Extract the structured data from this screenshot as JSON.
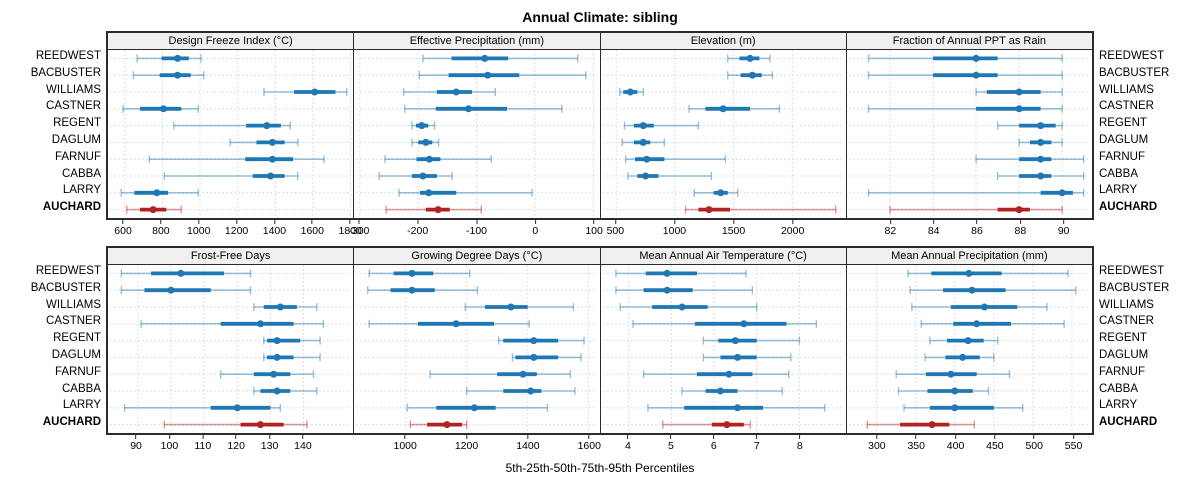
{
  "title": "Annual Climate: sibling",
  "xlabel": "5th-25th-50th-75th-95th Percentiles",
  "chart_data": {
    "type": "scatter",
    "subtype": "percentile-interval-trellis",
    "percentiles": [
      5,
      25,
      50,
      75,
      95
    ],
    "categories": [
      "REEDWEST",
      "BACBUSTER",
      "WILLIAMS",
      "CASTNER",
      "REGENT",
      "DAGLUM",
      "FARNUF",
      "CABBA",
      "LARRY",
      "AUCHARD"
    ],
    "highlight_category": "AUCHARD",
    "layout": {
      "rows": 2,
      "cols": 4,
      "grid": "dotted",
      "legend": "none",
      "row_labels": "both-sides"
    },
    "colors": {
      "series": "#1f77b4",
      "series_light": "rgba(31,119,180,0.45)",
      "highlight": "#b22222",
      "highlight_light": "rgba(178,34,34,0.45)",
      "grid": "#d4d4d4",
      "header_bg": "#f0f0f0",
      "border": "#2b2b2b"
    },
    "panels": [
      {
        "title": "Design Freeze Index (°C)",
        "xlim": [
          510,
          1815
        ],
        "ticks": [
          600,
          800,
          1000,
          1200,
          1400,
          1600,
          1800
        ],
        "values": [
          [
            665,
            795,
            880,
            940,
            1005
          ],
          [
            645,
            785,
            880,
            950,
            1020
          ],
          [
            1340,
            1500,
            1610,
            1720,
            1780
          ],
          [
            590,
            680,
            805,
            900,
            990
          ],
          [
            860,
            1245,
            1355,
            1430,
            1480
          ],
          [
            1160,
            1300,
            1385,
            1450,
            1520
          ],
          [
            730,
            1240,
            1385,
            1495,
            1660
          ],
          [
            810,
            1280,
            1375,
            1450,
            1520
          ],
          [
            580,
            650,
            770,
            830,
            990
          ],
          [
            610,
            680,
            750,
            820,
            900
          ]
        ]
      },
      {
        "title": "Effective Precipitation (mm)",
        "xlim": [
          -310,
          110
        ],
        "ticks": [
          -300,
          -200,
          -100,
          0,
          100
        ],
        "values": [
          [
            -192,
            -143,
            -86,
            -46,
            73
          ],
          [
            -198,
            -148,
            -81,
            -27,
            87
          ],
          [
            -225,
            -168,
            -135,
            -108,
            -68
          ],
          [
            -223,
            -170,
            -114,
            -48,
            46
          ],
          [
            -211,
            -204,
            -194,
            -183,
            -172
          ],
          [
            -211,
            -200,
            -187,
            -176,
            -165
          ],
          [
            -257,
            -203,
            -181,
            -162,
            -75
          ],
          [
            -267,
            -211,
            -192,
            -168,
            -142
          ],
          [
            -233,
            -197,
            -182,
            -135,
            -5
          ],
          [
            -255,
            -187,
            -166,
            -146,
            -92
          ]
        ]
      },
      {
        "title": "Elevation (m)",
        "xlim": [
          370,
          2460
        ],
        "ticks": [
          500,
          1000,
          1500,
          2000
        ],
        "values": [
          [
            1450,
            1550,
            1640,
            1720,
            1810
          ],
          [
            1450,
            1560,
            1660,
            1740,
            1830
          ],
          [
            530,
            560,
            620,
            680,
            730
          ],
          [
            1120,
            1260,
            1410,
            1640,
            1890
          ],
          [
            570,
            650,
            730,
            820,
            1200
          ],
          [
            550,
            650,
            730,
            790,
            910
          ],
          [
            580,
            660,
            760,
            910,
            1430
          ],
          [
            600,
            680,
            750,
            860,
            1310
          ],
          [
            1165,
            1330,
            1390,
            1450,
            1535
          ],
          [
            1090,
            1200,
            1290,
            1470,
            2370
          ]
        ]
      },
      {
        "title": "Fraction of Annual PPT as Rain",
        "xlim": [
          80,
          91.4
        ],
        "ticks": [
          82,
          84,
          86,
          88,
          90
        ],
        "values": [
          [
            81,
            84,
            86,
            87,
            90
          ],
          [
            81,
            84,
            86,
            87,
            90
          ],
          [
            86,
            86.5,
            88,
            89,
            90
          ],
          [
            81,
            86,
            88,
            89,
            90
          ],
          [
            87,
            88,
            89,
            89.7,
            90
          ],
          [
            88,
            88.5,
            89,
            89.5,
            90
          ],
          [
            86,
            88,
            89,
            89.5,
            91
          ],
          [
            87,
            88,
            89,
            89.5,
            91
          ],
          [
            81,
            89,
            90,
            90.5,
            91
          ],
          [
            82,
            87,
            88,
            88.5,
            90
          ]
        ]
      },
      {
        "title": "Frost-Free Days",
        "xlim": [
          81,
          155
        ],
        "ticks": [
          90,
          100,
          110,
          120,
          130,
          140
        ],
        "values": [
          [
            85,
            94,
            103,
            116,
            124
          ],
          [
            85,
            92,
            100,
            112,
            124
          ],
          [
            125,
            128,
            133,
            138,
            144
          ],
          [
            91,
            115,
            127,
            137,
            146
          ],
          [
            128,
            129,
            132,
            139,
            145
          ],
          [
            128,
            129,
            132,
            137,
            145
          ],
          [
            115,
            125,
            131,
            136,
            143
          ],
          [
            125,
            127,
            132,
            136,
            144
          ],
          [
            86,
            112,
            120,
            130,
            133
          ],
          [
            98,
            121,
            127,
            134,
            141
          ]
        ]
      },
      {
        "title": "Growing Degree Days (°C)",
        "xlim": [
          830,
          1635
        ],
        "ticks": [
          1000,
          1200,
          1400,
          1600
        ],
        "values": [
          [
            880,
            960,
            1020,
            1090,
            1210
          ],
          [
            875,
            950,
            1020,
            1095,
            1235
          ],
          [
            1195,
            1260,
            1345,
            1400,
            1550
          ],
          [
            880,
            1040,
            1165,
            1290,
            1405
          ],
          [
            1305,
            1320,
            1420,
            1500,
            1585
          ],
          [
            1350,
            1360,
            1420,
            1500,
            1575
          ],
          [
            1080,
            1300,
            1385,
            1430,
            1540
          ],
          [
            1200,
            1320,
            1410,
            1445,
            1555
          ],
          [
            1005,
            1100,
            1225,
            1295,
            1465
          ],
          [
            1015,
            1070,
            1135,
            1185,
            1200
          ]
        ]
      },
      {
        "title": "Mean Annual Air Temperature (°C)",
        "xlim": [
          3.35,
          9.1
        ],
        "ticks": [
          4,
          5,
          6,
          7,
          8
        ],
        "values": [
          [
            3.7,
            4.4,
            4.9,
            5.6,
            6.75
          ],
          [
            3.7,
            4.35,
            4.9,
            5.5,
            6.9
          ],
          [
            3.8,
            4.55,
            5.25,
            5.85,
            7.0
          ],
          [
            4.1,
            5.55,
            6.7,
            7.7,
            8.4
          ],
          [
            5.75,
            6.1,
            6.5,
            7.0,
            8.0
          ],
          [
            5.75,
            6.15,
            6.55,
            7.0,
            7.8
          ],
          [
            4.35,
            5.6,
            6.35,
            6.9,
            7.75
          ],
          [
            5.25,
            5.8,
            6.15,
            6.55,
            7.6
          ],
          [
            4.45,
            5.3,
            6.55,
            7.15,
            8.6
          ],
          [
            4.8,
            5.95,
            6.3,
            6.7,
            6.85
          ]
        ]
      },
      {
        "title": "Mean Annual Precipitation (mm)",
        "xlim": [
          262,
          576
        ],
        "ticks": [
          300,
          350,
          400,
          450,
          500,
          550
        ],
        "values": [
          [
            340,
            370,
            418,
            460,
            545
          ],
          [
            343,
            385,
            422,
            465,
            555
          ],
          [
            345,
            395,
            438,
            480,
            518
          ],
          [
            357,
            398,
            428,
            472,
            540
          ],
          [
            368,
            390,
            417,
            437,
            455
          ],
          [
            362,
            388,
            410,
            432,
            450
          ],
          [
            325,
            363,
            395,
            428,
            470
          ],
          [
            328,
            365,
            400,
            423,
            443
          ],
          [
            335,
            368,
            400,
            450,
            487
          ],
          [
            288,
            330,
            371,
            393,
            425
          ]
        ]
      }
    ]
  }
}
